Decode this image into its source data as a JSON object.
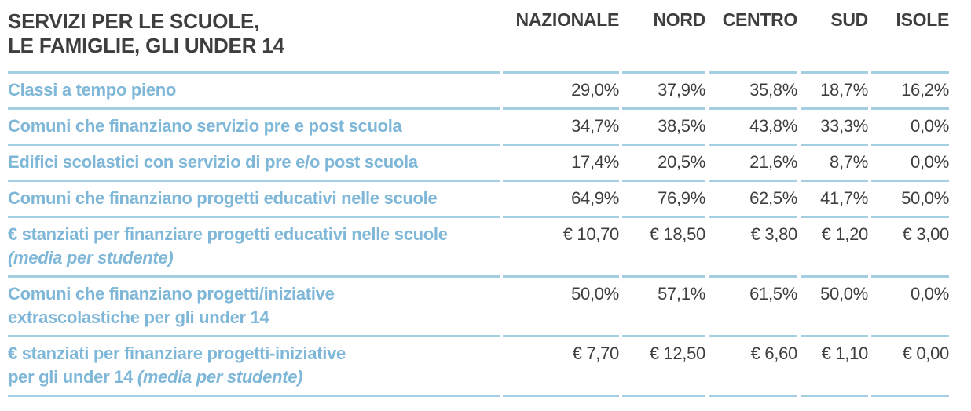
{
  "chart_data": {
    "type": "table",
    "title": "SERVIZI PER LE SCUOLE, LE FAMIGLIE, GLI UNDER 14",
    "title_lines": [
      "SERVIZI PER LE SCUOLE,",
      "LE FAMIGLIE, GLI UNDER 14"
    ],
    "columns": [
      "NAZIONALE",
      "NORD",
      "CENTRO",
      "SUD",
      "ISOLE"
    ],
    "rows": [
      {
        "line1": "Classi a tempo pieno",
        "values": [
          "29,0%",
          "37,9%",
          "35,8%",
          "18,7%",
          "16,2%"
        ]
      },
      {
        "line1": "Comuni che finanziano servizio pre e post scuola",
        "values": [
          "34,7%",
          "38,5%",
          "43,8%",
          "33,3%",
          "0,0%"
        ]
      },
      {
        "line1": "Edifici scolastici con servizio di pre e/o post scuola",
        "values": [
          "17,4%",
          "20,5%",
          "21,6%",
          "8,7%",
          "0,0%"
        ]
      },
      {
        "line1": "Comuni che finanziano progetti educativi nelle scuole",
        "values": [
          "64,9%",
          "76,9%",
          "62,5%",
          "41,7%",
          "50,0%"
        ]
      },
      {
        "line1": "€ stanziati per finanziare progetti educativi nelle scuole",
        "line2_italic": "(media per studente)",
        "values": [
          "€ 10,70",
          "€ 18,50",
          "€ 3,80",
          "€ 1,20",
          "€ 3,00"
        ]
      },
      {
        "line1": "Comuni che finanziano progetti/iniziative",
        "line2": "extrascolastiche per gli under 14",
        "values": [
          "50,0%",
          "57,1%",
          "61,5%",
          "50,0%",
          "0,0%"
        ]
      },
      {
        "line1": "€ stanziati per finanziare progetti-iniziative",
        "line2": "per gli under 14",
        "line2_italic": "(media per studente)",
        "values": [
          "€ 7,70",
          "€ 12,50",
          "€ 6,60",
          "€ 1,10",
          "€ 0,00"
        ]
      }
    ]
  },
  "colors": {
    "accent_text_blue": "#7EB7D8",
    "rule_blue": "#A6CEE3",
    "dark_text": "#3E3E41"
  }
}
